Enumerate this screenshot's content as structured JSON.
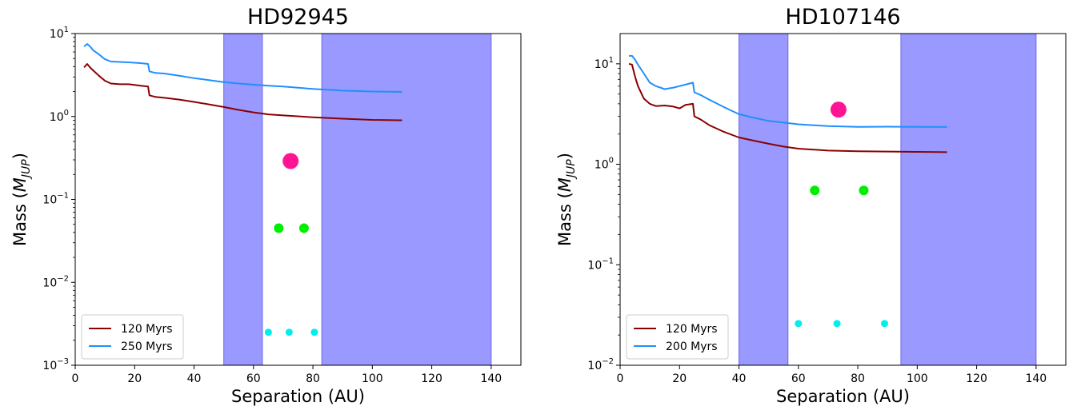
{
  "chart_data": [
    {
      "type": "line",
      "title": "HD92945",
      "xlabel": "Separation (AU)",
      "ylabel": "Mass (M_JUP)",
      "ylabel_parts": {
        "main": "Mass (",
        "italic": "M",
        "sub": "JUP",
        "close": ")"
      },
      "xlim": [
        0,
        150
      ],
      "ylim": [
        0.001,
        10
      ],
      "yscale": "log",
      "x_ticks": [
        0,
        20,
        40,
        60,
        80,
        100,
        120,
        140
      ],
      "x_tick_labels": [
        "0",
        "20",
        "40",
        "60",
        "80",
        "100",
        "120",
        "140"
      ],
      "y_ticks": [
        0.001,
        0.01,
        0.1,
        1,
        10
      ],
      "y_tick_labels": [
        {
          "base": "10",
          "exp": "−3"
        },
        {
          "base": "10",
          "exp": "−2"
        },
        {
          "base": "10",
          "exp": "−1"
        },
        {
          "base": "10",
          "exp": "0"
        },
        {
          "base": "10",
          "exp": "1"
        }
      ],
      "shaded_regions": [
        [
          50,
          63
        ],
        [
          83,
          140
        ]
      ],
      "shade_color": "#9999ff",
      "series": [
        {
          "name": "120 Myrs",
          "color": "#8b0000",
          "x": [
            3,
            4,
            5,
            6,
            8,
            10,
            12,
            15,
            18,
            20,
            22,
            24.5,
            25,
            27,
            30,
            35,
            40,
            45,
            50,
            55,
            60,
            65,
            70,
            80,
            90,
            100,
            110
          ],
          "y": [
            3.9,
            4.3,
            3.9,
            3.6,
            3.1,
            2.7,
            2.5,
            2.45,
            2.45,
            2.4,
            2.35,
            2.3,
            1.8,
            1.72,
            1.68,
            1.6,
            1.5,
            1.4,
            1.3,
            1.2,
            1.12,
            1.06,
            1.03,
            0.98,
            0.94,
            0.91,
            0.9
          ]
        },
        {
          "name": "250 Myrs",
          "color": "#1e90ff",
          "x": [
            3,
            4,
            5,
            6,
            8,
            10,
            12,
            15,
            18,
            20,
            22,
            24.5,
            25,
            27,
            30,
            35,
            40,
            45,
            50,
            55,
            60,
            65,
            70,
            80,
            90,
            100,
            110
          ],
          "y": [
            7.0,
            7.5,
            7.0,
            6.3,
            5.6,
            4.9,
            4.6,
            4.55,
            4.5,
            4.45,
            4.4,
            4.3,
            3.5,
            3.35,
            3.3,
            3.1,
            2.9,
            2.75,
            2.6,
            2.5,
            2.42,
            2.35,
            2.3,
            2.15,
            2.05,
            2.0,
            1.98
          ]
        }
      ],
      "markers": [
        {
          "x": 72.5,
          "y": 0.29,
          "color": "#ff1493",
          "size": "large"
        },
        {
          "x": 68.5,
          "y": 0.045,
          "color": "#00ee00",
          "size": "medium"
        },
        {
          "x": 77,
          "y": 0.045,
          "color": "#00ee00",
          "size": "medium"
        },
        {
          "x": 65,
          "y": 0.0025,
          "color": "#00eeee",
          "size": "small"
        },
        {
          "x": 72,
          "y": 0.0025,
          "color": "#00eeee",
          "size": "small"
        },
        {
          "x": 80.5,
          "y": 0.0025,
          "color": "#00eeee",
          "size": "small"
        }
      ],
      "legend_position": "lower-left"
    },
    {
      "type": "line",
      "title": "HD107146",
      "xlabel": "Separation (AU)",
      "ylabel": "Mass (M_JUP)",
      "ylabel_parts": {
        "main": "Mass (",
        "italic": "M",
        "sub": "JUP",
        "close": ")"
      },
      "xlim": [
        0,
        150
      ],
      "ylim": [
        0.01,
        20
      ],
      "yscale": "log",
      "x_ticks": [
        0,
        20,
        40,
        60,
        80,
        100,
        120,
        140
      ],
      "x_tick_labels": [
        "0",
        "20",
        "40",
        "60",
        "80",
        "100",
        "120",
        "140"
      ],
      "y_ticks": [
        0.01,
        0.1,
        1,
        10
      ],
      "y_tick_labels": [
        {
          "base": "10",
          "exp": "−2"
        },
        {
          "base": "10",
          "exp": "−1"
        },
        {
          "base": "10",
          "exp": "0"
        },
        {
          "base": "10",
          "exp": "1"
        }
      ],
      "shaded_regions": [
        [
          40,
          56.5
        ],
        [
          94.5,
          140
        ]
      ],
      "shade_color": "#9999ff",
      "series": [
        {
          "name": "120 Myrs",
          "color": "#8b0000",
          "x": [
            3,
            4,
            5,
            6,
            8,
            10,
            12,
            15,
            18,
            20,
            22,
            24.5,
            25,
            27,
            30,
            35,
            40,
            45,
            50,
            55,
            60,
            70,
            80,
            90,
            100,
            110
          ],
          "y": [
            10,
            9.8,
            7.5,
            6.0,
            4.5,
            4.0,
            3.8,
            3.85,
            3.75,
            3.6,
            3.9,
            4.0,
            3.0,
            2.8,
            2.45,
            2.1,
            1.85,
            1.72,
            1.6,
            1.5,
            1.43,
            1.37,
            1.35,
            1.34,
            1.33,
            1.32
          ]
        },
        {
          "name": "200 Myrs",
          "color": "#1e90ff",
          "x": [
            3,
            4,
            5,
            6,
            8,
            10,
            12,
            15,
            18,
            20,
            22,
            24.5,
            25,
            27,
            30,
            35,
            40,
            45,
            50,
            55,
            60,
            70,
            80,
            90,
            100,
            110
          ],
          "y": [
            12,
            12,
            11,
            9.8,
            8.0,
            6.5,
            6.0,
            5.6,
            5.8,
            6.0,
            6.2,
            6.5,
            5.2,
            4.9,
            4.4,
            3.7,
            3.15,
            2.9,
            2.7,
            2.6,
            2.5,
            2.4,
            2.36,
            2.37,
            2.36,
            2.35
          ]
        }
      ],
      "markers": [
        {
          "x": 73.5,
          "y": 3.5,
          "color": "#ff1493",
          "size": "large"
        },
        {
          "x": 65.5,
          "y": 0.55,
          "color": "#00ee00",
          "size": "medium"
        },
        {
          "x": 82,
          "y": 0.55,
          "color": "#00ee00",
          "size": "medium"
        },
        {
          "x": 60,
          "y": 0.026,
          "color": "#00eeee",
          "size": "small"
        },
        {
          "x": 73,
          "y": 0.026,
          "color": "#00eeee",
          "size": "small"
        },
        {
          "x": 89,
          "y": 0.026,
          "color": "#00eeee",
          "size": "small"
        }
      ],
      "legend_position": "lower-left"
    }
  ]
}
